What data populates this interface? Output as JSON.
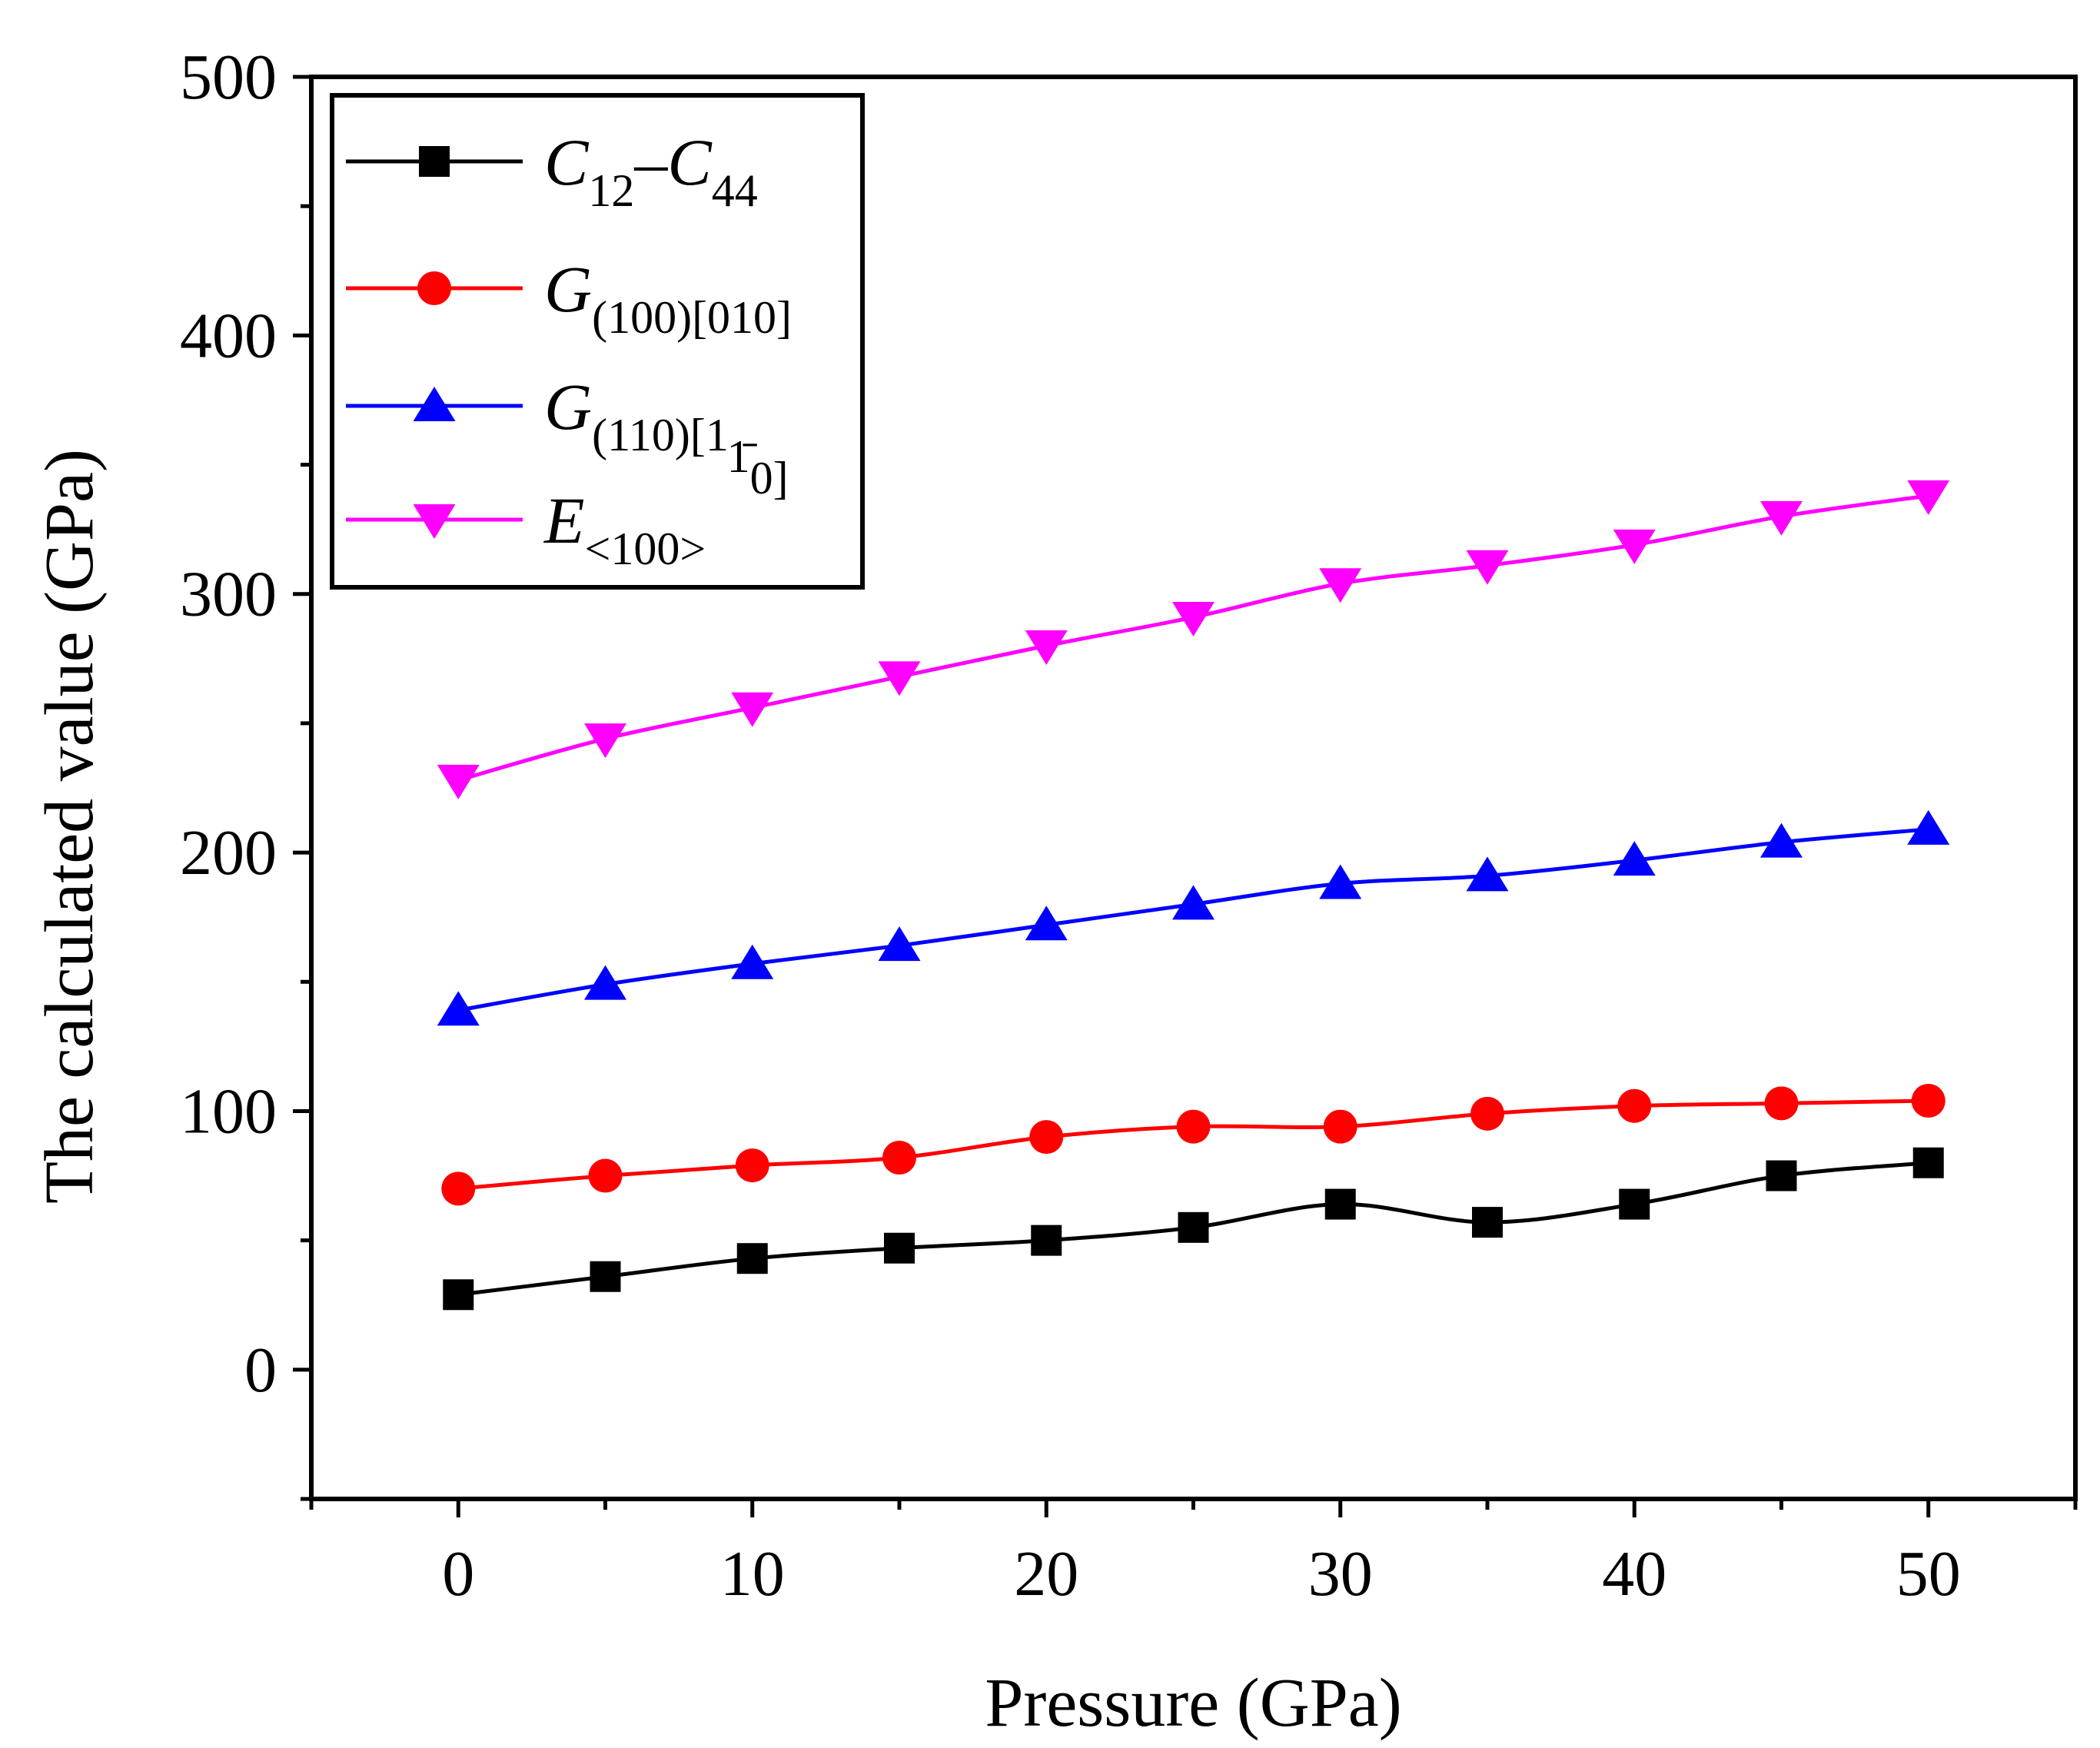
{
  "chart_data": {
    "type": "line",
    "xlabel": "Pressure (GPa)",
    "ylabel": "The calculated value (GPa)",
    "xlim": [
      -5,
      55
    ],
    "ylim": [
      -50,
      500
    ],
    "xticks": [
      0,
      10,
      20,
      30,
      40,
      50
    ],
    "yticks": [
      0,
      100,
      200,
      300,
      400,
      500
    ],
    "x": [
      0,
      5,
      10,
      15,
      20,
      25,
      30,
      35,
      40,
      45,
      50
    ],
    "legend_position": "top-left",
    "grid": false,
    "series": [
      {
        "name": "C12–C44",
        "legend_main": "C",
        "legend_parts": [
          {
            "t": "C",
            "sub": false
          },
          {
            "t": "12",
            "sub": true
          },
          {
            "t": "–C",
            "sub": false
          },
          {
            "t": "44",
            "sub": true
          }
        ],
        "color": "#000000",
        "marker": "square",
        "values": [
          29,
          36,
          43,
          47,
          50,
          55,
          64,
          57,
          64,
          75,
          80
        ]
      },
      {
        "name": "G(100)[010]",
        "legend_parts": [
          {
            "t": "G",
            "sub": false
          },
          {
            "t": "(100)[010]",
            "sub": true
          }
        ],
        "color": "#ff0000",
        "marker": "circle",
        "values": [
          70,
          75,
          79,
          82,
          90,
          94,
          94,
          99,
          102,
          103,
          104
        ]
      },
      {
        "name": "G(110)[1-10]",
        "legend_parts": [
          {
            "t": "G",
            "sub": false
          },
          {
            "t": "(110)[1",
            "sub": true
          },
          {
            "t": "1̄",
            "sub": true
          },
          {
            "t": "0]",
            "sub": true
          }
        ],
        "color": "#0000ff",
        "marker": "triangle-up",
        "values": [
          139,
          149,
          157,
          164,
          172,
          180,
          188,
          191,
          197,
          204,
          209
        ]
      },
      {
        "name": "E<100>",
        "legend_parts": [
          {
            "t": "E",
            "sub": false
          },
          {
            "t": "<100>",
            "sub": true
          }
        ],
        "color": "#ff00ff",
        "marker": "triangle-down",
        "values": [
          228,
          244,
          256,
          268,
          280,
          291,
          304,
          311,
          319,
          330,
          338
        ]
      }
    ]
  }
}
